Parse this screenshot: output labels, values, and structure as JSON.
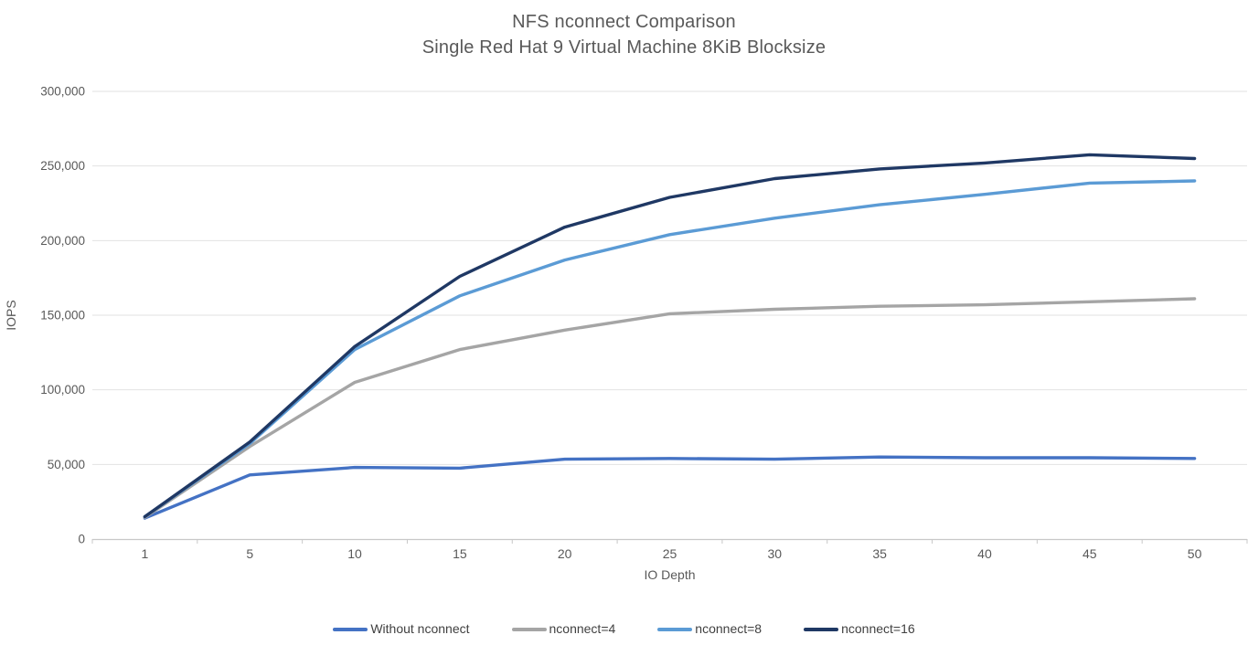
{
  "chart": {
    "title_line1": "NFS nconnect Comparison",
    "title_line2": "Single Red Hat 9 Virtual Machine 8KiB Blocksize",
    "title_color": "#595959"
  },
  "chart_data": {
    "type": "line",
    "title": "NFS nconnect Comparison",
    "subtitle": "Single Red Hat 9 Virtual Machine 8KiB Blocksize",
    "xlabel": "IO Depth",
    "ylabel": "IOPS",
    "categories": [
      "1",
      "5",
      "10",
      "15",
      "20",
      "25",
      "30",
      "35",
      "40",
      "45",
      "50"
    ],
    "ylim": [
      0,
      300000
    ],
    "ytick_step": 50000,
    "ytick_labels": [
      "0",
      "50,000",
      "100,000",
      "150,000",
      "200,000",
      "250,000",
      "300,000"
    ],
    "grid": true,
    "legend_position": "bottom",
    "series": [
      {
        "name": "Without nconnect",
        "color": "#4472C4",
        "values": [
          14000,
          43000,
          48000,
          47500,
          53500,
          54000,
          53500,
          55000,
          54500,
          54500,
          54000
        ]
      },
      {
        "name": "nconnect=4",
        "color": "#A5A5A5",
        "values": [
          14500,
          62000,
          105000,
          127000,
          140000,
          151000,
          154000,
          156000,
          157000,
          159000,
          161000
        ]
      },
      {
        "name": "nconnect=8",
        "color": "#5B9BD5",
        "values": [
          15000,
          64000,
          127000,
          163000,
          187000,
          204000,
          215000,
          224000,
          231000,
          238500,
          240000
        ]
      },
      {
        "name": "nconnect=16",
        "color": "#1F3864",
        "values": [
          15000,
          65000,
          129000,
          176000,
          209000,
          229000,
          241500,
          248000,
          252000,
          257500,
          255000
        ]
      }
    ],
    "style_colors": {
      "gridline": "#E2E2E2",
      "axis_line": "#C8C8C8",
      "tick_label": "#595959",
      "axis_title": "#595959",
      "legend_text": "#404040"
    }
  }
}
